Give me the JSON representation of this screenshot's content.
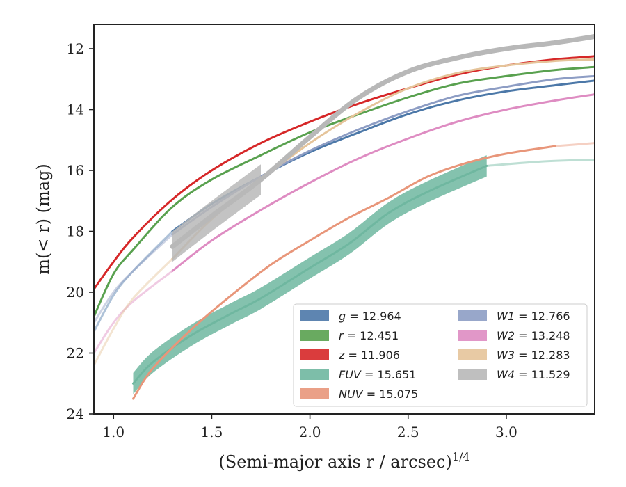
{
  "chart_data": {
    "type": "line",
    "xlabel": "(Semi-major axis r / arcsec)",
    "xlabel_sup": "1/4",
    "ylabel": "m(< r) (mag)",
    "xlim": [
      0.9,
      3.45
    ],
    "ylim": [
      24,
      11.2
    ],
    "y_inverted": true,
    "xticks": [
      1.0,
      1.5,
      2.0,
      2.5,
      3.0
    ],
    "xtick_labels": [
      "1.0",
      "1.5",
      "2.0",
      "2.5",
      "3.0"
    ],
    "yticks": [
      12,
      14,
      16,
      18,
      20,
      22,
      24
    ],
    "ytick_labels": [
      "12",
      "14",
      "16",
      "18",
      "20",
      "22",
      "24"
    ],
    "legend_position": "lower-right",
    "series": [
      {
        "name": "g = 12.964",
        "color": "#4c78a8",
        "width": 3,
        "x": [
          0.9,
          1.0,
          1.1,
          1.3,
          1.5,
          1.75,
          2.0,
          2.25,
          2.5,
          2.75,
          3.0,
          3.25,
          3.45
        ],
        "y": [
          21.3,
          20.1,
          19.3,
          18.0,
          17.1,
          16.2,
          15.4,
          14.75,
          14.15,
          13.7,
          13.4,
          13.2,
          13.05
        ],
        "faint_until": 1.3
      },
      {
        "name": "r = 12.451",
        "color": "#59a14f",
        "width": 3,
        "x": [
          0.9,
          1.0,
          1.1,
          1.3,
          1.5,
          1.75,
          2.0,
          2.25,
          2.5,
          2.75,
          3.0,
          3.25,
          3.45
        ],
        "y": [
          20.8,
          19.4,
          18.6,
          17.2,
          16.3,
          15.5,
          14.75,
          14.15,
          13.6,
          13.15,
          12.9,
          12.7,
          12.6
        ],
        "faint_until": 0.9
      },
      {
        "name": "z = 11.906",
        "color": "#d62728",
        "width": 3,
        "x": [
          0.9,
          1.0,
          1.1,
          1.3,
          1.5,
          1.75,
          2.0,
          2.25,
          2.5,
          2.75,
          3.0,
          3.25,
          3.45
        ],
        "y": [
          19.9,
          19.0,
          18.2,
          16.95,
          16.0,
          15.1,
          14.4,
          13.8,
          13.3,
          12.85,
          12.55,
          12.35,
          12.25
        ],
        "faint_until": 0.9
      },
      {
        "name": "FUV = 15.651",
        "color": "#6fb7a0",
        "width": 3,
        "x": [
          1.1,
          1.2,
          1.4,
          1.6,
          1.75,
          2.0,
          2.2,
          2.4,
          2.6,
          2.9,
          3.2,
          3.45
        ],
        "y": [
          23.0,
          22.3,
          21.4,
          20.7,
          20.2,
          19.2,
          18.4,
          17.4,
          16.7,
          15.85,
          15.7,
          15.65
        ],
        "band": 0.35,
        "band_until": 2.9,
        "faint_from": 2.9
      },
      {
        "name": "NUV = 15.075",
        "color": "#e8967a",
        "width": 3,
        "x": [
          1.1,
          1.2,
          1.4,
          1.6,
          1.8,
          2.0,
          2.2,
          2.4,
          2.6,
          2.8,
          3.0,
          3.25,
          3.45
        ],
        "y": [
          23.5,
          22.5,
          21.2,
          20.1,
          19.1,
          18.3,
          17.55,
          16.9,
          16.2,
          15.75,
          15.45,
          15.2,
          15.1
        ],
        "faint_from": 3.25
      },
      {
        "name": "W1 = 12.766",
        "color": "#8d9dc4",
        "width": 3,
        "x": [
          0.9,
          1.0,
          1.1,
          1.3,
          1.5,
          1.75,
          2.0,
          2.25,
          2.5,
          2.75,
          3.0,
          3.25,
          3.45
        ],
        "y": [
          21.0,
          20.0,
          19.3,
          18.1,
          17.2,
          16.2,
          15.35,
          14.65,
          14.05,
          13.55,
          13.25,
          13.0,
          12.9
        ],
        "faint_until": 1.3
      },
      {
        "name": "W2 = 13.248",
        "color": "#de8cc2",
        "width": 3,
        "x": [
          0.9,
          1.0,
          1.1,
          1.3,
          1.5,
          1.75,
          2.0,
          2.25,
          2.5,
          2.75,
          3.0,
          3.25,
          3.45
        ],
        "y": [
          22.0,
          21.0,
          20.3,
          19.3,
          18.3,
          17.3,
          16.4,
          15.6,
          14.95,
          14.4,
          14.0,
          13.7,
          13.5
        ],
        "faint_until": 1.3
      },
      {
        "name": "W3 = 12.283",
        "color": "#e5c49a",
        "width": 3,
        "x": [
          0.9,
          1.0,
          1.1,
          1.3,
          1.5,
          1.75,
          2.0,
          2.25,
          2.5,
          2.75,
          3.0,
          3.25,
          3.45
        ],
        "y": [
          22.4,
          21.2,
          20.2,
          18.9,
          17.6,
          16.3,
          15.1,
          14.1,
          13.3,
          12.8,
          12.55,
          12.4,
          12.35
        ],
        "faint_until": 1.3
      },
      {
        "name": "W4 = 11.529",
        "color": "#b8b8b8",
        "width": 7,
        "x": [
          1.3,
          1.5,
          1.75,
          2.0,
          2.25,
          2.5,
          2.75,
          3.0,
          3.25,
          3.45
        ],
        "y": [
          18.5,
          17.5,
          16.3,
          14.9,
          13.6,
          12.75,
          12.3,
          12.0,
          11.8,
          11.6
        ],
        "band": 0.5,
        "band_until": 1.75
      }
    ]
  }
}
